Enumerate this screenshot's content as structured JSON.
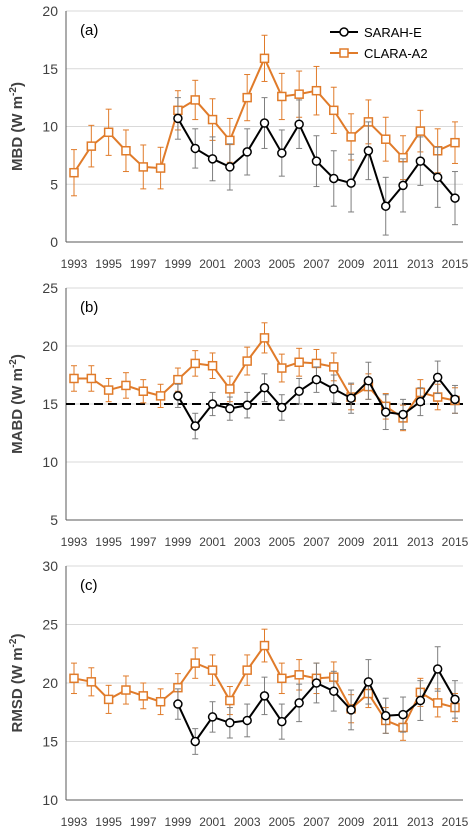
{
  "colors": {
    "sarah": "#000000",
    "clara": "#e07b2a",
    "grid": "#d9d9d9",
    "axis": "#595959",
    "reference_line": "#000000"
  },
  "legend": {
    "sarah_label": "SARAH-E",
    "clara_label": "CLARA-A2",
    "sarah_marker": "circle",
    "clara_marker": "square"
  },
  "chart_data": [
    {
      "type": "line",
      "panel_label": "(a)",
      "ylabel_main": "MBD (W m",
      "ylabel_sup": "-2",
      "ylabel_close": ")",
      "ylim": [
        0,
        20
      ],
      "yticks": [
        0,
        5,
        10,
        15,
        20
      ],
      "xlim": [
        1993,
        2015
      ],
      "xticks": [
        1993,
        1995,
        1997,
        1999,
        2001,
        2003,
        2005,
        2007,
        2009,
        2011,
        2013,
        2015
      ],
      "grid": true,
      "legend": "top-right",
      "series": [
        {
          "name": "SARAH-E",
          "x": [
            1999,
            2000,
            2001,
            2002,
            2003,
            2004,
            2005,
            2006,
            2007,
            2008,
            2009,
            2010,
            2011,
            2012,
            2013,
            2014,
            2015
          ],
          "y": [
            10.7,
            8.1,
            7.2,
            6.5,
            7.8,
            10.3,
            7.7,
            10.2,
            7.0,
            5.5,
            5.1,
            7.9,
            3.1,
            4.9,
            7.0,
            5.6,
            3.8
          ],
          "err": [
            1.8,
            1.7,
            1.9,
            2.0,
            2.0,
            2.2,
            2.0,
            2.1,
            2.2,
            2.4,
            2.5,
            2.5,
            2.5,
            2.3,
            2.1,
            2.6,
            2.3
          ]
        },
        {
          "name": "CLARA-A2",
          "x": [
            1993,
            1994,
            1995,
            1996,
            1997,
            1998,
            1999,
            2000,
            2001,
            2002,
            2003,
            2004,
            2005,
            2006,
            2007,
            2008,
            2009,
            2010,
            2011,
            2012,
            2013,
            2014,
            2015
          ],
          "y": [
            6.0,
            8.3,
            9.5,
            7.9,
            6.5,
            6.4,
            11.4,
            12.3,
            10.6,
            8.8,
            12.5,
            15.9,
            12.6,
            12.8,
            13.1,
            11.4,
            9.1,
            10.4,
            8.9,
            7.3,
            9.6,
            7.9,
            8.6
          ],
          "err": [
            2.0,
            1.8,
            2.0,
            1.8,
            1.9,
            1.8,
            1.7,
            1.7,
            1.8,
            1.9,
            2.0,
            2.0,
            2.0,
            2.0,
            2.1,
            2.0,
            2.0,
            1.9,
            1.9,
            1.9,
            1.8,
            1.9,
            1.8
          ]
        }
      ]
    },
    {
      "type": "line",
      "panel_label": "(b)",
      "ylabel_main": "MABD (W m",
      "ylabel_sup": "-2",
      "ylabel_close": ")",
      "ylim": [
        5,
        25
      ],
      "yticks": [
        5,
        10,
        15,
        20,
        25
      ],
      "xlim": [
        1993,
        2015
      ],
      "xticks": [
        1993,
        1995,
        1997,
        1999,
        2001,
        2003,
        2005,
        2007,
        2009,
        2011,
        2013,
        2015
      ],
      "grid": true,
      "reference_line_y": 15,
      "series": [
        {
          "name": "SARAH-E",
          "x": [
            1999,
            2000,
            2001,
            2002,
            2003,
            2004,
            2005,
            2006,
            2007,
            2008,
            2009,
            2010,
            2011,
            2012,
            2013,
            2014,
            2015
          ],
          "y": [
            15.7,
            13.1,
            15.0,
            14.6,
            14.9,
            16.4,
            14.7,
            16.1,
            17.1,
            16.3,
            15.5,
            17.0,
            14.3,
            14.1,
            15.2,
            17.3,
            15.4
          ],
          "err": [
            1.0,
            1.1,
            1.0,
            1.0,
            1.1,
            1.2,
            1.1,
            1.1,
            1.1,
            1.2,
            1.3,
            1.6,
            1.5,
            1.3,
            1.2,
            1.4,
            1.2
          ]
        },
        {
          "name": "CLARA-A2",
          "x": [
            1993,
            1994,
            1995,
            1996,
            1997,
            1998,
            1999,
            2000,
            2001,
            2002,
            2003,
            2004,
            2005,
            2006,
            2007,
            2008,
            2009,
            2010,
            2011,
            2012,
            2013,
            2014,
            2015
          ],
          "y": [
            17.2,
            17.2,
            16.2,
            16.6,
            16.1,
            15.7,
            17.1,
            18.5,
            18.3,
            16.3,
            18.7,
            20.7,
            18.1,
            18.6,
            18.5,
            18.2,
            15.6,
            16.5,
            14.8,
            13.8,
            16.0,
            15.6,
            15.3
          ],
          "err": [
            1.1,
            1.1,
            1.0,
            1.1,
            1.0,
            1.0,
            1.0,
            1.1,
            1.1,
            1.1,
            1.2,
            1.3,
            1.2,
            1.2,
            1.2,
            1.2,
            1.1,
            1.1,
            1.1,
            1.1,
            1.1,
            1.1,
            1.1
          ]
        }
      ]
    },
    {
      "type": "line",
      "panel_label": "(c)",
      "ylabel_main": "RMSD (W m",
      "ylabel_sup": "-2",
      "ylabel_close": ")",
      "ylim": [
        10,
        30
      ],
      "yticks": [
        10,
        15,
        20,
        25,
        30
      ],
      "xlim": [
        1993,
        2015
      ],
      "xticks": [
        1993,
        1995,
        1997,
        1999,
        2001,
        2003,
        2005,
        2007,
        2009,
        2011,
        2013,
        2015
      ],
      "grid": true,
      "series": [
        {
          "name": "SARAH-E",
          "x": [
            1999,
            2000,
            2001,
            2002,
            2003,
            2004,
            2005,
            2006,
            2007,
            2008,
            2009,
            2010,
            2011,
            2012,
            2013,
            2014,
            2015
          ],
          "y": [
            18.2,
            15.0,
            17.1,
            16.6,
            16.8,
            18.9,
            16.7,
            18.3,
            20.0,
            19.3,
            17.7,
            20.1,
            17.2,
            17.3,
            18.5,
            21.2,
            18.6
          ],
          "err": [
            1.3,
            1.1,
            1.3,
            1.3,
            1.4,
            1.6,
            1.5,
            1.6,
            1.7,
            1.7,
            1.7,
            1.9,
            1.5,
            1.5,
            1.7,
            1.9,
            1.6
          ]
        },
        {
          "name": "CLARA-A2",
          "x": [
            1993,
            1994,
            1995,
            1996,
            1997,
            1998,
            1999,
            2000,
            2001,
            2002,
            2003,
            2004,
            2005,
            2006,
            2007,
            2008,
            2009,
            2010,
            2011,
            2012,
            2013,
            2014,
            2015
          ],
          "y": [
            20.4,
            20.1,
            18.6,
            19.4,
            18.9,
            18.4,
            19.6,
            21.7,
            21.1,
            18.5,
            21.1,
            23.2,
            20.4,
            20.7,
            20.4,
            20.5,
            17.8,
            19.1,
            16.8,
            16.2,
            19.2,
            18.3,
            17.9
          ],
          "err": [
            1.3,
            1.2,
            1.2,
            1.2,
            1.1,
            1.1,
            1.2,
            1.3,
            1.3,
            1.2,
            1.3,
            1.4,
            1.3,
            1.3,
            1.3,
            1.3,
            1.2,
            1.2,
            1.1,
            1.1,
            1.2,
            1.2,
            1.2
          ]
        }
      ]
    }
  ]
}
